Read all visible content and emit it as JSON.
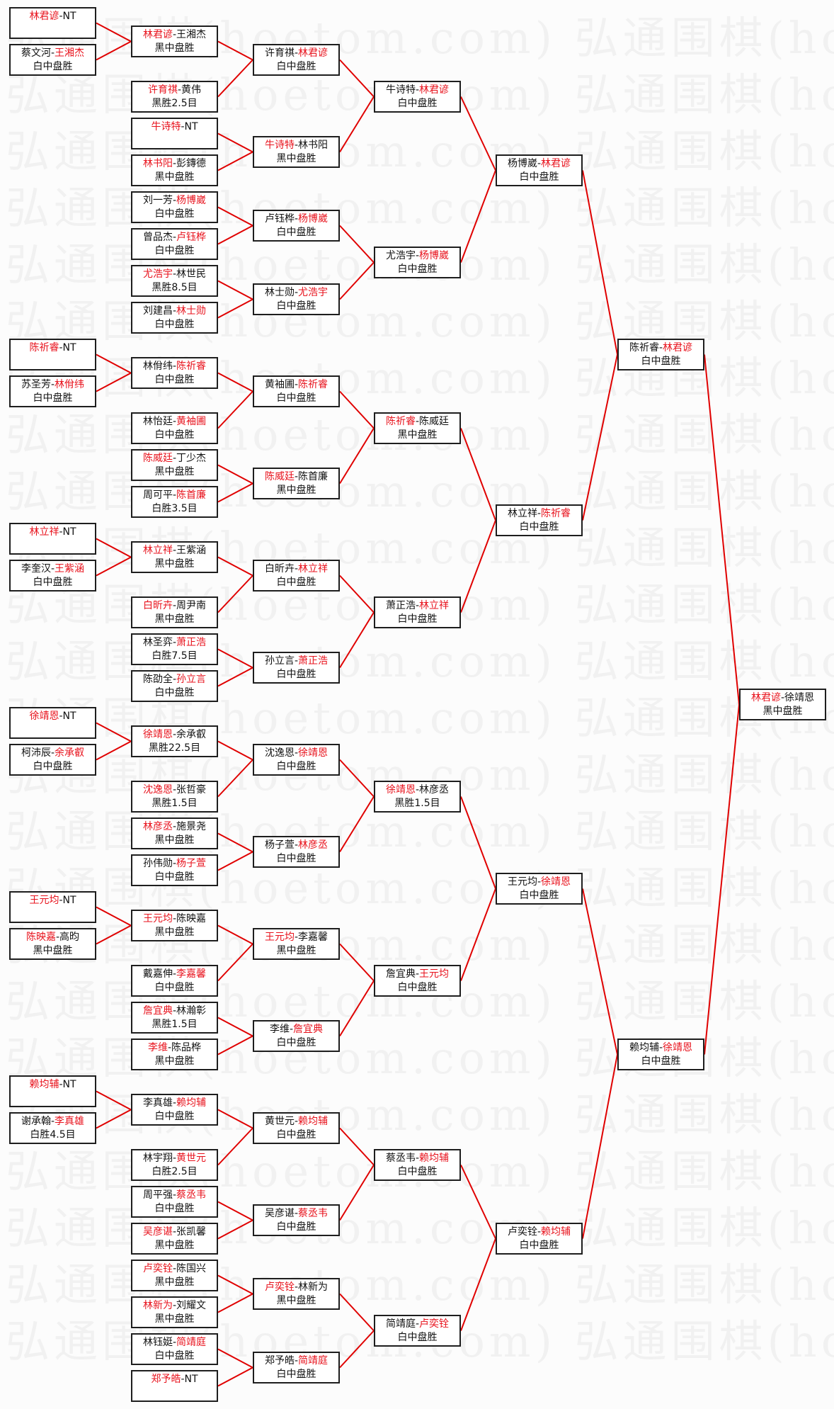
{
  "watermark": "弘通围棋(hoetom.com)",
  "colors": {
    "winner": "#e8121c",
    "connector": "#e00000",
    "box_border": "#1e1e1e"
  },
  "rounds": [
    [
      {
        "a": "林君谚",
        "b": "NT",
        "winner": "a",
        "result": ""
      },
      {
        "a": "蔡文河",
        "b": "王湘杰",
        "winner": "b",
        "result": "白中盘胜"
      },
      {
        "a": "陈祈睿",
        "b": "NT",
        "winner": "a",
        "result": ""
      },
      {
        "a": "苏圣芳",
        "b": "林佾纬",
        "winner": "b",
        "result": "白中盘胜"
      },
      {
        "a": "林立祥",
        "b": "NT",
        "winner": "a",
        "result": ""
      },
      {
        "a": "李奎汉",
        "b": "王紫涵",
        "winner": "b",
        "result": "白中盘胜"
      },
      {
        "a": "徐靖恩",
        "b": "NT",
        "winner": "a",
        "result": ""
      },
      {
        "a": "柯沛辰",
        "b": "余承叡",
        "winner": "b",
        "result": "白中盘胜"
      },
      {
        "a": "王元均",
        "b": "NT",
        "winner": "a",
        "result": ""
      },
      {
        "a": "陈映嘉",
        "b": "高昀",
        "winner": "a",
        "result": "黑中盘胜"
      },
      {
        "a": "赖均辅",
        "b": "NT",
        "winner": "a",
        "result": ""
      },
      {
        "a": "谢承翰",
        "b": "李真雄",
        "winner": "b",
        "result": "白胜4.5目"
      }
    ],
    [
      {
        "a": "林君谚",
        "b": "王湘杰",
        "winner": "a",
        "result": "黑中盘胜"
      },
      {
        "a": "许育祺",
        "b": "黄伟",
        "winner": "a",
        "result": "黑胜2.5目"
      },
      {
        "a": "牛诗特",
        "b": "NT",
        "winner": "a",
        "result": ""
      },
      {
        "a": "林书阳",
        "b": "彭鏄德",
        "winner": "a",
        "result": "黑中盘胜"
      },
      {
        "a": "刘一芳",
        "b": "杨博崴",
        "winner": "b",
        "result": "白中盘胜"
      },
      {
        "a": "曾品杰",
        "b": "卢钰桦",
        "winner": "b",
        "result": "白中盘胜"
      },
      {
        "a": "尤浩宇",
        "b": "林世民",
        "winner": "a",
        "result": "黑胜8.5目"
      },
      {
        "a": "刘建昌",
        "b": "林士勋",
        "winner": "b",
        "result": "白中盘胜"
      },
      {
        "a": "林佾纬",
        "b": "陈祈睿",
        "winner": "b",
        "result": "白中盘胜"
      },
      {
        "a": "林怡廷",
        "b": "黄袖圃",
        "winner": "b",
        "result": "白中盘胜"
      },
      {
        "a": "陈威廷",
        "b": "丁少杰",
        "winner": "a",
        "result": "黑中盘胜"
      },
      {
        "a": "周可平",
        "b": "陈首廉",
        "winner": "b",
        "result": "白胜3.5目"
      },
      {
        "a": "林立祥",
        "b": "王紫涵",
        "winner": "a",
        "result": "黑中盘胜"
      },
      {
        "a": "白昕卉",
        "b": "周尹南",
        "winner": "a",
        "result": "黑中盘胜"
      },
      {
        "a": "林圣弈",
        "b": "萧正浩",
        "winner": "b",
        "result": "白胜7.5目"
      },
      {
        "a": "陈劭全",
        "b": "孙立言",
        "winner": "b",
        "result": "白中盘胜"
      },
      {
        "a": "徐靖恩",
        "b": "余承叡",
        "winner": "a",
        "result": "黑胜22.5目"
      },
      {
        "a": "沈逸恩",
        "b": "张哲豪",
        "winner": "a",
        "result": "黑胜1.5目"
      },
      {
        "a": "林彦丞",
        "b": "施景尧",
        "winner": "a",
        "result": "黑中盘胜"
      },
      {
        "a": "孙伟勋",
        "b": "杨子萱",
        "winner": "b",
        "result": "白中盘胜"
      },
      {
        "a": "王元均",
        "b": "陈映嘉",
        "winner": "a",
        "result": "黑中盘胜"
      },
      {
        "a": "戴嘉伸",
        "b": "李嘉馨",
        "winner": "b",
        "result": "白中盘胜"
      },
      {
        "a": "詹宜典",
        "b": "林瀚彰",
        "winner": "a",
        "result": "黑胜1.5目"
      },
      {
        "a": "李维",
        "b": "陈品桦",
        "winner": "a",
        "result": "黑中盘胜"
      },
      {
        "a": "李真雄",
        "b": "赖均辅",
        "winner": "b",
        "result": "白中盘胜"
      },
      {
        "a": "林宇翔",
        "b": "黄世元",
        "winner": "b",
        "result": "白胜2.5目"
      },
      {
        "a": "周平强",
        "b": "蔡丞韦",
        "winner": "b",
        "result": "白中盘胜"
      },
      {
        "a": "吴彦谌",
        "b": "张凯馨",
        "winner": "a",
        "result": "黑中盘胜"
      },
      {
        "a": "卢奕铨",
        "b": "陈国兴",
        "winner": "a",
        "result": "黑中盘胜"
      },
      {
        "a": "林新为",
        "b": "刘耀文",
        "winner": "a",
        "result": "黑中盘胜"
      },
      {
        "a": "林钰娗",
        "b": "简靖庭",
        "winner": "b",
        "result": "白中盘胜"
      },
      {
        "a": "郑予皓",
        "b": "NT",
        "winner": "a",
        "result": ""
      }
    ],
    [
      {
        "a": "许育祺",
        "b": "林君谚",
        "winner": "b",
        "result": "白中盘胜"
      },
      {
        "a": "牛诗特",
        "b": "林书阳",
        "winner": "a",
        "result": "黑中盘胜"
      },
      {
        "a": "卢钰桦",
        "b": "杨博崴",
        "winner": "b",
        "result": "白中盘胜"
      },
      {
        "a": "林士勋",
        "b": "尤浩宇",
        "winner": "b",
        "result": "白中盘胜"
      },
      {
        "a": "黄袖圃",
        "b": "陈祈睿",
        "winner": "b",
        "result": "白中盘胜"
      },
      {
        "a": "陈威廷",
        "b": "陈首廉",
        "winner": "a",
        "result": "黑中盘胜"
      },
      {
        "a": "白昕卉",
        "b": "林立祥",
        "winner": "b",
        "result": "白中盘胜"
      },
      {
        "a": "孙立言",
        "b": "萧正浩",
        "winner": "b",
        "result": "白中盘胜"
      },
      {
        "a": "沈逸恩",
        "b": "徐靖恩",
        "winner": "b",
        "result": "白中盘胜"
      },
      {
        "a": "杨子萱",
        "b": "林彦丞",
        "winner": "b",
        "result": "白中盘胜"
      },
      {
        "a": "王元均",
        "b": "李嘉馨",
        "winner": "a",
        "result": "黑中盘胜"
      },
      {
        "a": "李维",
        "b": "詹宜典",
        "winner": "b",
        "result": "白中盘胜"
      },
      {
        "a": "黄世元",
        "b": "赖均辅",
        "winner": "b",
        "result": "白中盘胜"
      },
      {
        "a": "吴彦谌",
        "b": "蔡丞韦",
        "winner": "b",
        "result": "白中盘胜"
      },
      {
        "a": "卢奕铨",
        "b": "林新为",
        "winner": "a",
        "result": "黑中盘胜"
      },
      {
        "a": "郑予皓",
        "b": "简靖庭",
        "winner": "b",
        "result": "白中盘胜"
      }
    ],
    [
      {
        "a": "牛诗特",
        "b": "林君谚",
        "winner": "b",
        "result": "白中盘胜"
      },
      {
        "a": "尤浩宇",
        "b": "杨博崴",
        "winner": "b",
        "result": "白中盘胜"
      },
      {
        "a": "陈祈睿",
        "b": "陈威廷",
        "winner": "a",
        "result": "黑中盘胜"
      },
      {
        "a": "萧正浩",
        "b": "林立祥",
        "winner": "b",
        "result": "白中盘胜"
      },
      {
        "a": "徐靖恩",
        "b": "林彦丞",
        "winner": "a",
        "result": "黑胜1.5目"
      },
      {
        "a": "詹宜典",
        "b": "王元均",
        "winner": "b",
        "result": "白中盘胜"
      },
      {
        "a": "蔡丞韦",
        "b": "赖均辅",
        "winner": "b",
        "result": "白中盘胜"
      },
      {
        "a": "简靖庭",
        "b": "卢奕铨",
        "winner": "b",
        "result": "白中盘胜"
      }
    ],
    [
      {
        "a": "杨博崴",
        "b": "林君谚",
        "winner": "b",
        "result": "白中盘胜"
      },
      {
        "a": "林立祥",
        "b": "陈祈睿",
        "winner": "b",
        "result": "白中盘胜"
      },
      {
        "a": "王元均",
        "b": "徐靖恩",
        "winner": "b",
        "result": "白中盘胜"
      },
      {
        "a": "卢奕铨",
        "b": "赖均辅",
        "winner": "b",
        "result": "白中盘胜"
      }
    ],
    [
      {
        "a": "陈祈睿",
        "b": "林君谚",
        "winner": "b",
        "result": "白中盘胜"
      },
      {
        "a": "赖均辅",
        "b": "徐靖恩",
        "winner": "b",
        "result": "白中盘胜"
      }
    ],
    [
      {
        "a": "林君谚",
        "b": "徐靖恩",
        "winner": "a",
        "result": "黑中盘胜"
      }
    ]
  ]
}
